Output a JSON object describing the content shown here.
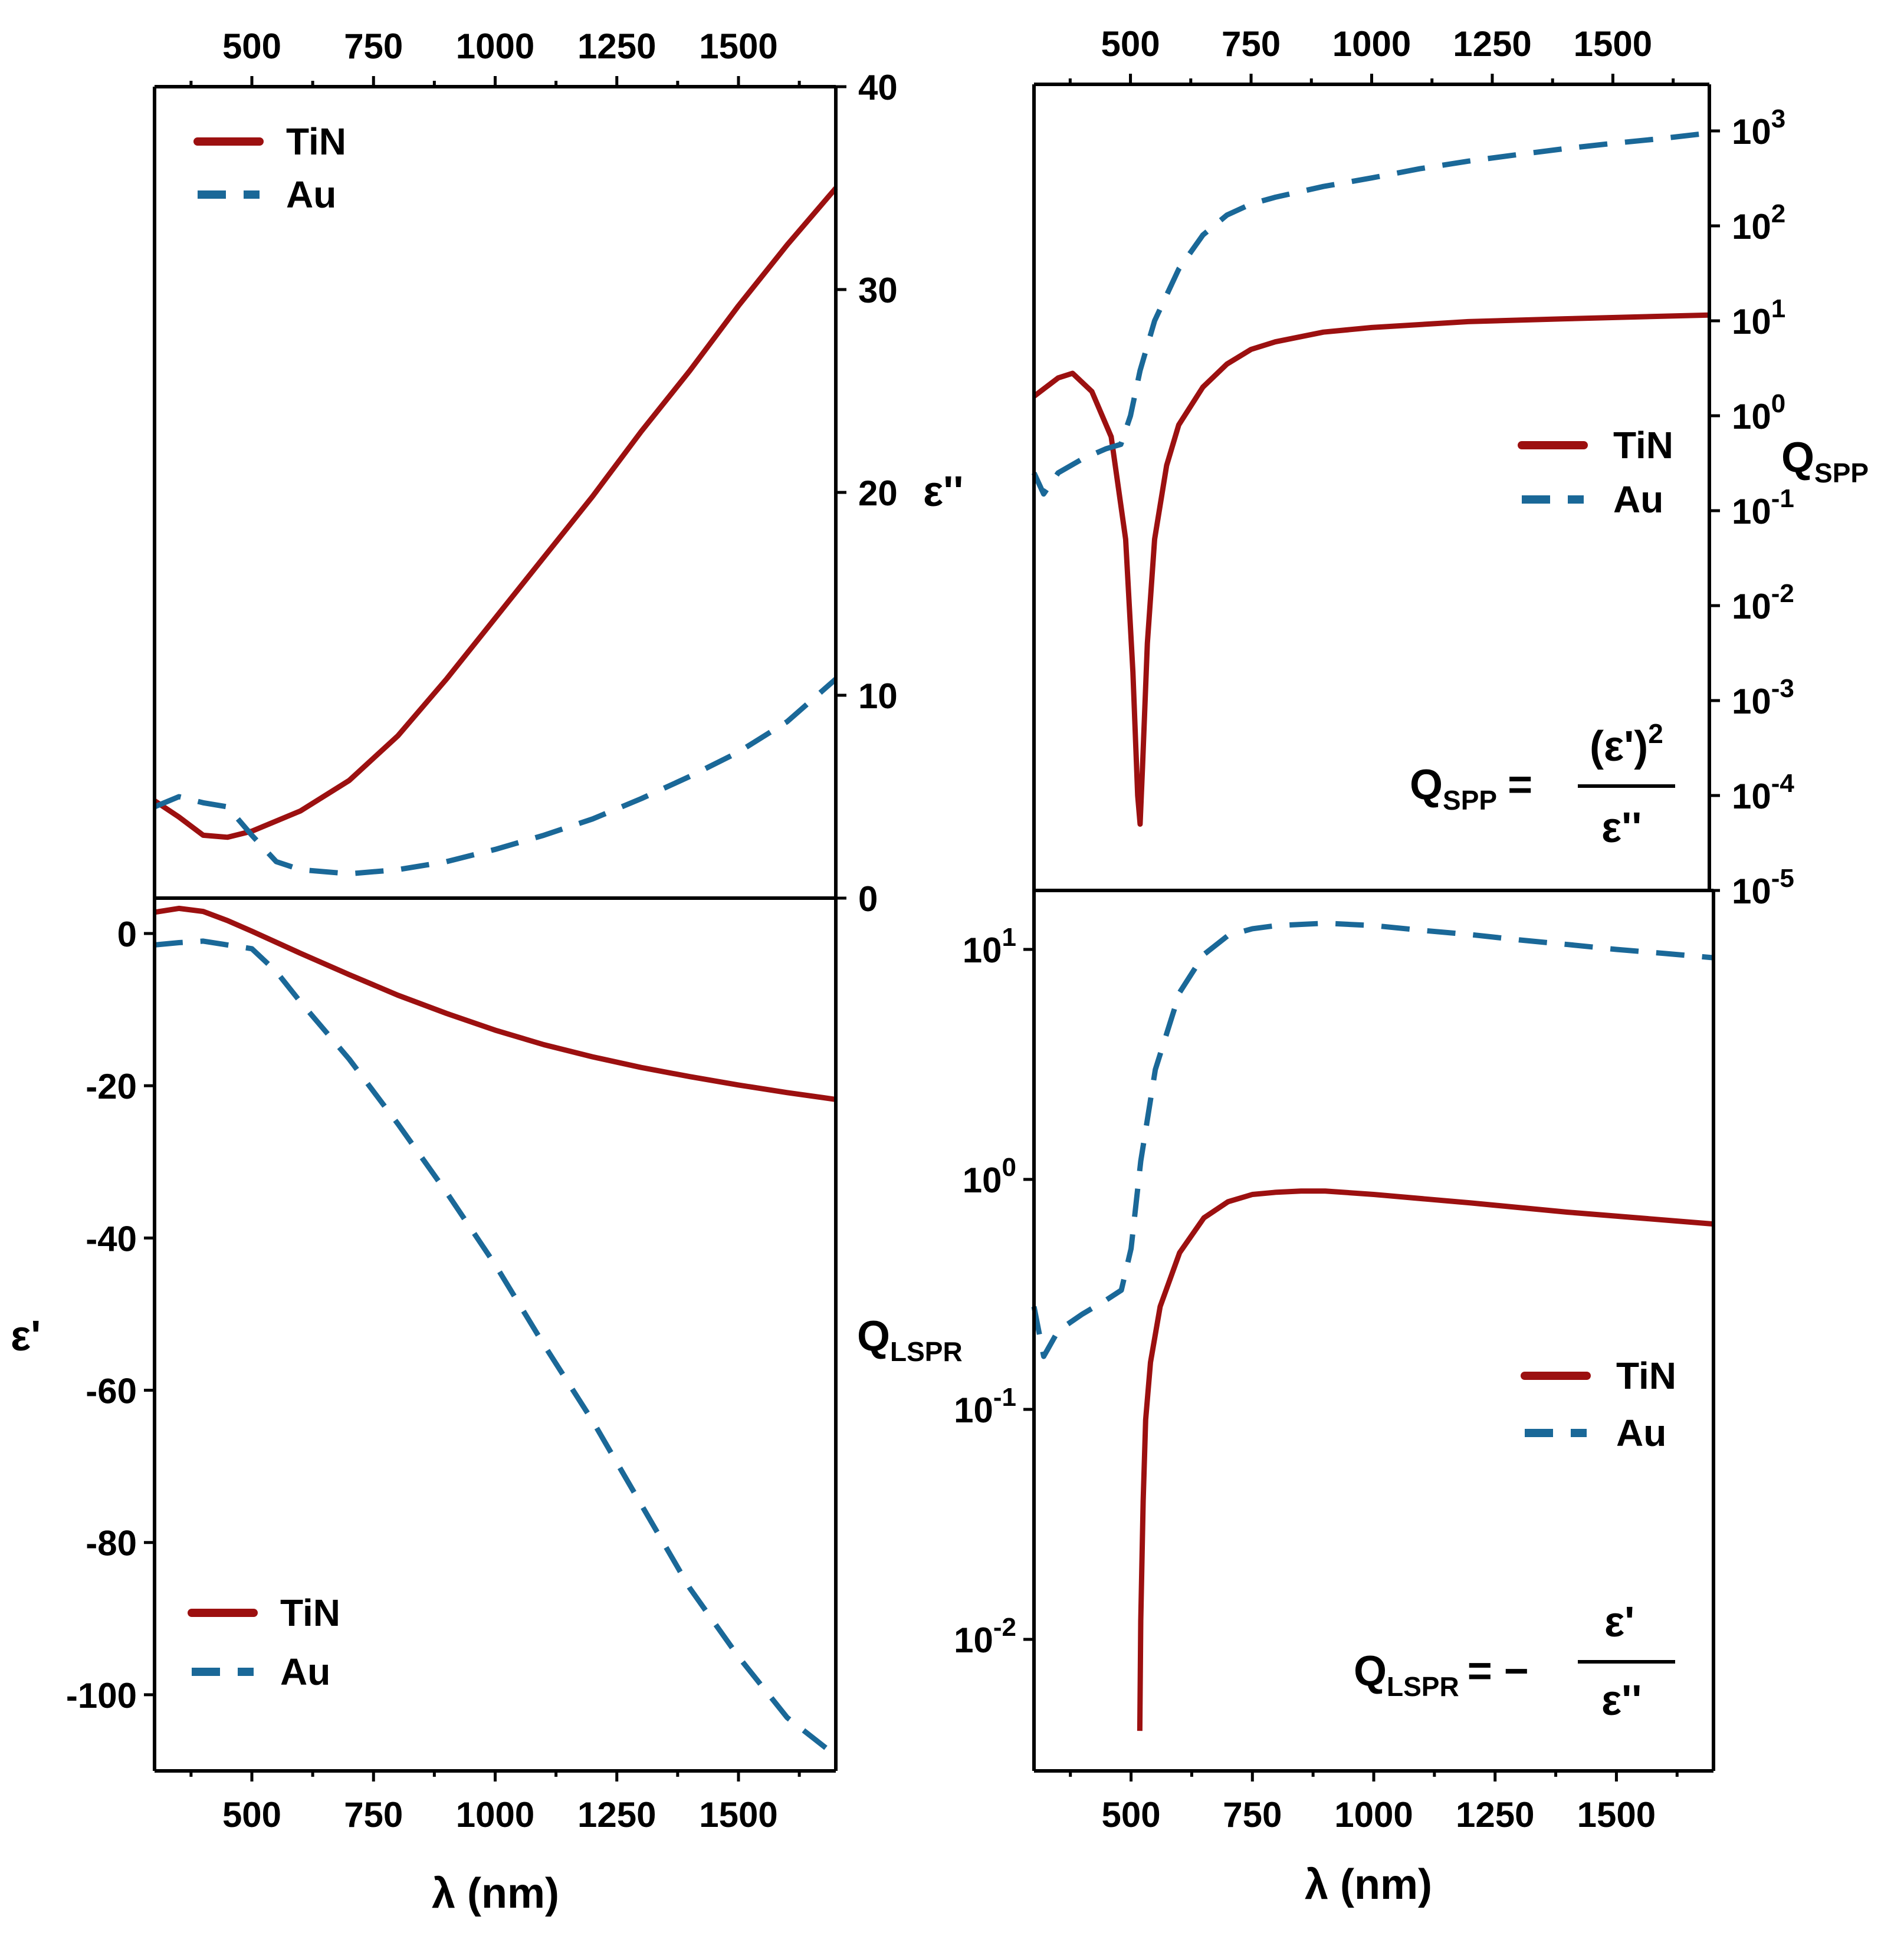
{
  "figure": {
    "colors": {
      "tin": "#9c1010",
      "au": "#1a6898",
      "axis": "#000000"
    },
    "legend": {
      "tin": "TiN",
      "au": "Au"
    }
  },
  "labels": {
    "eps2": "ε''",
    "eps1": "ε'",
    "q_base": "Q",
    "spp_sub": "SPP",
    "lspr_sub": "LSPR",
    "x_axis": "λ (nm)",
    "eq_spp_num": "(ε')",
    "eq_spp_exp": "2",
    "eq_den": "ε''",
    "eq_equals": "=",
    "eq_lspr_num": "ε'",
    "eq_lspr_equals": "= −"
  },
  "chart_data": [
    {
      "id": "eps2",
      "type": "line",
      "title": "",
      "xlabel": "λ (nm)",
      "ylabel": "ε''",
      "xlim": [
        300,
        1700
      ],
      "ylim": [
        0,
        40
      ],
      "x_ticks": [
        500,
        750,
        1000,
        1250,
        1500
      ],
      "y_ticks": [
        0,
        10,
        20,
        30,
        40
      ],
      "series": [
        {
          "name": "TiN",
          "x": [
            300,
            350,
            400,
            450,
            500,
            600,
            700,
            800,
            900,
            1000,
            1100,
            1200,
            1300,
            1400,
            1500,
            1600,
            1700
          ],
          "y": [
            4.8,
            4.0,
            3.1,
            3.0,
            3.3,
            4.3,
            5.8,
            8.0,
            10.8,
            13.8,
            16.8,
            19.8,
            23.0,
            26.0,
            29.2,
            32.2,
            35.0
          ]
        },
        {
          "name": "Au",
          "x": [
            300,
            350,
            400,
            450,
            500,
            550,
            600,
            700,
            800,
            900,
            1000,
            1100,
            1200,
            1300,
            1400,
            1500,
            1600,
            1700
          ],
          "y": [
            4.5,
            5.0,
            4.7,
            4.5,
            3.1,
            1.8,
            1.4,
            1.2,
            1.4,
            1.8,
            2.4,
            3.1,
            3.9,
            4.9,
            6.0,
            7.2,
            8.7,
            10.8
          ]
        }
      ]
    },
    {
      "id": "eps1",
      "type": "line",
      "title": "",
      "xlabel": "λ (nm)",
      "ylabel": "ε'",
      "xlim": [
        300,
        1700
      ],
      "ylim": [
        -110,
        5
      ],
      "x_ticks": [
        500,
        750,
        1000,
        1250,
        1500
      ],
      "y_ticks": [
        0,
        -20,
        -40,
        -60,
        -80,
        -100
      ],
      "series": [
        {
          "name": "TiN",
          "x": [
            300,
            350,
            400,
            450,
            500,
            600,
            700,
            800,
            900,
            1000,
            1100,
            1200,
            1300,
            1400,
            1500,
            1600,
            1700
          ],
          "y": [
            2.8,
            3.3,
            2.9,
            1.7,
            0.3,
            -2.6,
            -5.4,
            -8.1,
            -10.5,
            -12.7,
            -14.6,
            -16.2,
            -17.6,
            -18.8,
            -19.9,
            -20.9,
            -21.8
          ]
        },
        {
          "name": "Au",
          "x": [
            300,
            350,
            400,
            450,
            500,
            550,
            600,
            700,
            800,
            900,
            1000,
            1100,
            1200,
            1300,
            1400,
            1500,
            1600,
            1700
          ],
          "y": [
            -1.5,
            -1.2,
            -1.0,
            -1.5,
            -2.0,
            -5.0,
            -9.0,
            -16.5,
            -25.0,
            -34.0,
            -43.5,
            -54.0,
            -64.0,
            -75.0,
            -86.0,
            -95.0,
            -103.0,
            -108.0
          ]
        }
      ]
    },
    {
      "id": "qspp",
      "type": "line",
      "title": "",
      "xlabel": "λ (nm)",
      "ylabel": "QSPP",
      "yscale": "log",
      "xlim": [
        300,
        1700
      ],
      "ylim": [
        1e-05,
        2000
      ],
      "x_ticks": [
        500,
        750,
        1000,
        1250,
        1500
      ],
      "y_ticks": [
        1e-05,
        0.0001,
        0.001,
        0.01,
        0.1,
        1,
        10,
        100,
        1000
      ],
      "y_tick_labels": [
        {
          "base": "10",
          "exp": "-5"
        },
        {
          "base": "10",
          "exp": "-4"
        },
        {
          "base": "10",
          "exp": "-3"
        },
        {
          "base": "10",
          "exp": "-2"
        },
        {
          "base": "10",
          "exp": "-1"
        },
        {
          "base": "10",
          "exp": "0"
        },
        {
          "base": "10",
          "exp": "1"
        },
        {
          "base": "10",
          "exp": "2"
        },
        {
          "base": "10",
          "exp": "3"
        }
      ],
      "series": [
        {
          "name": "TiN",
          "x": [
            300,
            350,
            380,
            420,
            460,
            490,
            505,
            515,
            520,
            525,
            535,
            550,
            575,
            600,
            650,
            700,
            750,
            800,
            900,
            1000,
            1200,
            1400,
            1700
          ],
          "y": [
            1.6,
            2.5,
            2.8,
            1.8,
            0.6,
            0.05,
            0.002,
            0.0001,
            5e-05,
            0.0002,
            0.004,
            0.05,
            0.3,
            0.8,
            2.0,
            3.5,
            5.0,
            6.0,
            7.6,
            8.5,
            9.8,
            10.5,
            11.5
          ]
        },
        {
          "name": "Au",
          "x": [
            300,
            320,
            350,
            400,
            450,
            480,
            500,
            520,
            550,
            600,
            650,
            700,
            750,
            800,
            900,
            1000,
            1100,
            1200,
            1300,
            1400,
            1500,
            1600,
            1700
          ],
          "y": [
            0.25,
            0.15,
            0.25,
            0.35,
            0.45,
            0.5,
            1.0,
            3.0,
            10,
            35,
            80,
            130,
            170,
            200,
            260,
            320,
            400,
            480,
            560,
            650,
            740,
            830,
            950
          ]
        }
      ]
    },
    {
      "id": "qlspr",
      "type": "line",
      "title": "",
      "xlabel": "λ (nm)",
      "ylabel": "QLSPR",
      "yscale": "log",
      "xlim": [
        300,
        1700
      ],
      "ylim": [
        0.003,
        18
      ],
      "x_ticks": [
        500,
        750,
        1000,
        1250,
        1500
      ],
      "y_ticks": [
        0.01,
        0.1,
        1,
        10
      ],
      "y_tick_labels": [
        {
          "base": "10",
          "exp": "-2"
        },
        {
          "base": "10",
          "exp": "-1"
        },
        {
          "base": "10",
          "exp": "0"
        },
        {
          "base": "10",
          "exp": "1"
        }
      ],
      "series": [
        {
          "name": "TiN",
          "x": [
            518,
            520,
            525,
            530,
            540,
            560,
            600,
            650,
            700,
            750,
            800,
            850,
            900,
            1000,
            1200,
            1400,
            1700
          ],
          "y": [
            0.004,
            0.012,
            0.04,
            0.09,
            0.16,
            0.28,
            0.48,
            0.68,
            0.8,
            0.86,
            0.88,
            0.89,
            0.89,
            0.86,
            0.79,
            0.72,
            0.64
          ]
        },
        {
          "name": "Au",
          "x": [
            300,
            320,
            350,
            400,
            450,
            480,
            500,
            520,
            550,
            600,
            650,
            700,
            750,
            800,
            900,
            1000,
            1100,
            1200,
            1300,
            1400,
            1500,
            1600,
            1700
          ],
          "y": [
            0.28,
            0.17,
            0.22,
            0.26,
            0.3,
            0.33,
            0.5,
            1.2,
            3.0,
            6.5,
            9.5,
            11.5,
            12.3,
            12.7,
            13.0,
            12.7,
            12.1,
            11.6,
            11.0,
            10.5,
            10.0,
            9.6,
            9.2
          ]
        }
      ]
    }
  ]
}
